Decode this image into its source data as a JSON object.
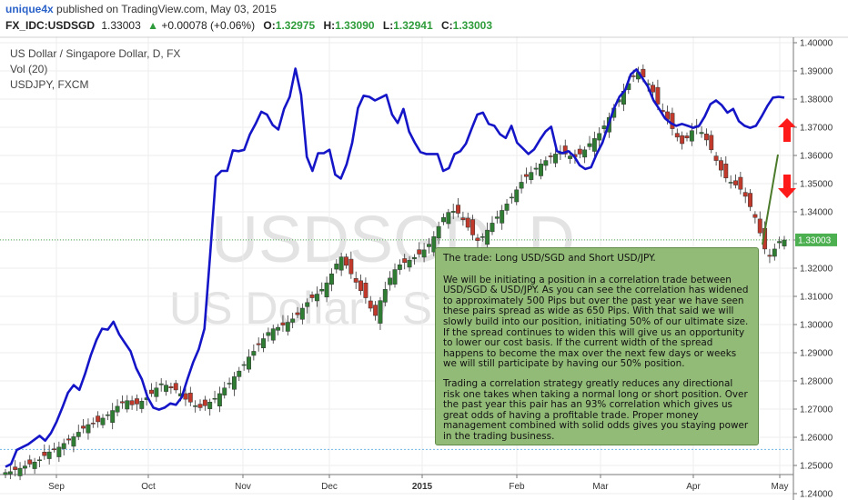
{
  "header": {
    "author": "unique4x",
    "published": "published on TradingView.com, May 03, 2015",
    "symbol": "FX_IDC:USDSGD",
    "last": "1.33003",
    "change_arrow": "▲",
    "change": "+0.00078 (+0.06%)",
    "open_label": "O:",
    "open": "1.32975",
    "high_label": "H:",
    "high": "1.33090",
    "low_label": "L:",
    "low": "1.32941",
    "close_label": "C:",
    "close": "1.33003"
  },
  "legend": {
    "main": "US Dollar / Singapore Dollar, D, FX",
    "volume": "Vol (20)",
    "overlay": "USDJPY, FXCM"
  },
  "watermark": {
    "symbol": "USDSGD, D",
    "name": "US Dollar / Singa"
  },
  "annotation": {
    "title": "The trade:   Long USD/SGD and Short USD/JPY.",
    "para1": "We will be initiating a position in a correlation trade between USD/SGD & USD/JPY.  As you can see the correlation has widened to approximately 500 Pips but over the past year we have seen these pairs spread as wide as 650 Pips.  With that said we will slowly build into our position, initiating 50% of our ultimate size. If the spread continues to widen this will give us an opportunity to lower our cost basis.  If the current width of the spread happens to become the max over the next few days or weeks we will still participate by having our 50% position.",
    "para2": "Trading a correlation strategy greatly reduces any directional risk one takes when taking a normal long or short position.  Over the past year this pair has an 93% correlation which gives us great odds of having a profitable trade.  Proper money management combined with solid odds gives you staying power in the trading business."
  },
  "colors": {
    "up": "#2e7d32",
    "down": "#c0392b",
    "overlay": "#1515c8",
    "annotation_bg": "#93bb78",
    "arrow": "#ff0000",
    "last_badge": "#4caf50"
  },
  "chart_data": {
    "type": "line",
    "series_types": {
      "USDSGD": "candlestick",
      "USDJPY": "line"
    },
    "y_axis": {
      "ticks": [
        "1.40000",
        "1.39000",
        "1.38000",
        "1.37000",
        "1.36000",
        "1.35000",
        "1.34000",
        "1.33000",
        "1.32000",
        "1.31000",
        "1.30000",
        "1.29000",
        "1.28000",
        "1.27000",
        "1.26000",
        "1.25000",
        "1.24000"
      ],
      "range": [
        1.236,
        1.402
      ]
    },
    "x_axis": {
      "ticks": [
        "Sep",
        "Oct",
        "Nov",
        "Dec",
        "2015",
        "Feb",
        "Mar",
        "Apr",
        "May"
      ]
    },
    "last_value_label": "1.33003",
    "reference_line": 1.2557,
    "series": [
      {
        "name": "USDSGD",
        "values": [
          1.2475,
          1.2478,
          1.2485,
          1.249,
          1.2498,
          1.2505,
          1.2512,
          1.252,
          1.2535,
          1.2548,
          1.2558,
          1.2565,
          1.2578,
          1.259,
          1.2602,
          1.2618,
          1.2632,
          1.2645,
          1.2648,
          1.2655,
          1.2668,
          1.268,
          1.2695,
          1.271,
          1.2722,
          1.273,
          1.2715,
          1.2718,
          1.2728,
          1.274,
          1.2755,
          1.2775,
          1.279,
          1.2785,
          1.2775,
          1.2768,
          1.2755,
          1.2735,
          1.2725,
          1.2712,
          1.2705,
          1.2712,
          1.2725,
          1.2738,
          1.2755,
          1.2775,
          1.2792,
          1.2815,
          1.2835,
          1.2858,
          1.2885,
          1.2905,
          1.2928,
          1.295,
          1.2972,
          1.2985,
          1.299,
          1.2998,
          1.3008,
          1.302,
          1.3035,
          1.3058,
          1.3078,
          1.3095,
          1.3108,
          1.3125,
          1.3148,
          1.318,
          1.3215,
          1.324,
          1.321,
          1.318,
          1.315,
          1.312,
          1.3095,
          1.3058,
          1.3032,
          1.3085,
          1.3125,
          1.3165,
          1.3195,
          1.3212,
          1.322,
          1.3228,
          1.3238,
          1.325,
          1.3265,
          1.3285,
          1.3312,
          1.3348,
          1.338,
          1.3398,
          1.3402,
          1.3395,
          1.3372,
          1.3345,
          1.3318,
          1.3298,
          1.3312,
          1.3335,
          1.336,
          1.3382,
          1.3405,
          1.3428,
          1.3452,
          1.3478,
          1.3505,
          1.3525,
          1.354,
          1.3555,
          1.357,
          1.3582,
          1.3595,
          1.3605,
          1.3612,
          1.3605,
          1.3598,
          1.3595,
          1.3605,
          1.362,
          1.3642,
          1.366,
          1.3678,
          1.3705,
          1.3735,
          1.3768,
          1.3798,
          1.3828,
          1.3855,
          1.3882,
          1.3895,
          1.3878,
          1.3855,
          1.3825,
          1.3782,
          1.3755,
          1.3728,
          1.3695,
          1.3665,
          1.3642,
          1.3662,
          1.3688,
          1.3705,
          1.3682,
          1.3655,
          1.362,
          1.3582,
          1.3548,
          1.352,
          1.3505,
          1.3495,
          1.348,
          1.3455,
          1.3418,
          1.338,
          1.3325,
          1.3268,
          1.3242,
          1.3268,
          1.3295,
          1.33
        ]
      },
      {
        "name": "USDJPY",
        "values": [
          1.2495,
          1.2505,
          1.2555,
          1.2565,
          1.2575,
          1.259,
          1.2605,
          1.2588,
          1.2615,
          1.2655,
          1.2705,
          1.2758,
          1.2785,
          1.2768,
          1.2825,
          1.289,
          1.2945,
          1.2985,
          1.2982,
          1.301,
          1.2965,
          1.2935,
          1.2905,
          1.2845,
          1.2805,
          1.2742,
          1.2705,
          1.2698,
          1.2705,
          1.272,
          1.2715,
          1.2742,
          1.2805,
          1.2865,
          1.2912,
          1.2985,
          1.3245,
          1.3525,
          1.3545,
          1.3545,
          1.3618,
          1.3615,
          1.362,
          1.3675,
          1.3712,
          1.3755,
          1.3745,
          1.3708,
          1.3692,
          1.3765,
          1.3808,
          1.3908,
          1.3815,
          1.3595,
          1.3545,
          1.3608,
          1.3608,
          1.362,
          1.3532,
          1.3518,
          1.3568,
          1.3645,
          1.3768,
          1.3812,
          1.3808,
          1.3795,
          1.3805,
          1.3815,
          1.3745,
          1.3715,
          1.3765,
          1.3685,
          1.3645,
          1.3612,
          1.3605,
          1.3605,
          1.3605,
          1.3545,
          1.3555,
          1.3605,
          1.3615,
          1.3642,
          1.3695,
          1.3745,
          1.3752,
          1.3712,
          1.3705,
          1.3675,
          1.3662,
          1.3705,
          1.3645,
          1.3625,
          1.3605,
          1.3622,
          1.3655,
          1.3685,
          1.3702,
          1.3615,
          1.3608,
          1.3615,
          1.3598,
          1.3565,
          1.3552,
          1.3558,
          1.3605,
          1.3645,
          1.3705,
          1.3765,
          1.3808,
          1.3832,
          1.3888,
          1.3905,
          1.3875,
          1.3845,
          1.3795,
          1.3765,
          1.3732,
          1.3715,
          1.3705,
          1.3712,
          1.3705,
          1.3698,
          1.3705,
          1.3738,
          1.3782,
          1.3795,
          1.3778,
          1.3752,
          1.3765,
          1.3722,
          1.3705,
          1.3698,
          1.3705,
          1.3738,
          1.3775,
          1.3805,
          1.3808,
          1.3805
        ]
      }
    ]
  }
}
